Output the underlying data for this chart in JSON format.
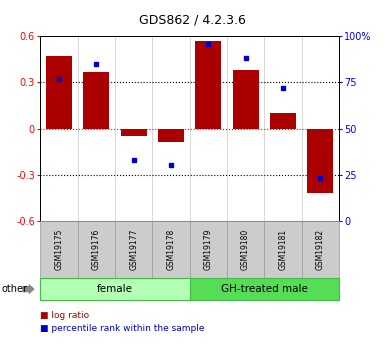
{
  "title": "GDS862 / 4.2.3.6",
  "samples": [
    "GSM19175",
    "GSM19176",
    "GSM19177",
    "GSM19178",
    "GSM19179",
    "GSM19180",
    "GSM19181",
    "GSM19182"
  ],
  "log_ratios": [
    0.47,
    0.37,
    -0.05,
    -0.09,
    0.57,
    0.38,
    0.1,
    -0.42
  ],
  "percentile_ranks": [
    77,
    85,
    33,
    30,
    96,
    88,
    72,
    23
  ],
  "groups": [
    {
      "label": "female",
      "start": 0,
      "end": 4,
      "color": "#b3ffb3",
      "edge": "#44bb44"
    },
    {
      "label": "GH-treated male",
      "start": 4,
      "end": 8,
      "color": "#55dd55",
      "edge": "#44bb44"
    }
  ],
  "bar_color": "#aa0000",
  "point_color": "#0000cc",
  "ylim": [
    -0.6,
    0.6
  ],
  "y2lim": [
    0,
    100
  ],
  "yticks": [
    -0.6,
    -0.3,
    0.0,
    0.3,
    0.6
  ],
  "y2ticks": [
    0,
    25,
    50,
    75,
    100
  ],
  "ytick_labels": [
    "-0.6",
    "-0.3",
    "0",
    "0.3",
    "0.6"
  ],
  "y2tick_labels": [
    "0",
    "25",
    "50",
    "75",
    "100%"
  ],
  "hlines": [
    0.3,
    -0.3
  ],
  "bg_color": "#ffffff",
  "plot_bg": "#ffffff",
  "legend_items": [
    {
      "label": "log ratio",
      "color": "#aa0000"
    },
    {
      "label": "percentile rank within the sample",
      "color": "#0000cc"
    }
  ],
  "other_label": "other",
  "label_box_color": "#cccccc",
  "label_box_edge": "#999999"
}
